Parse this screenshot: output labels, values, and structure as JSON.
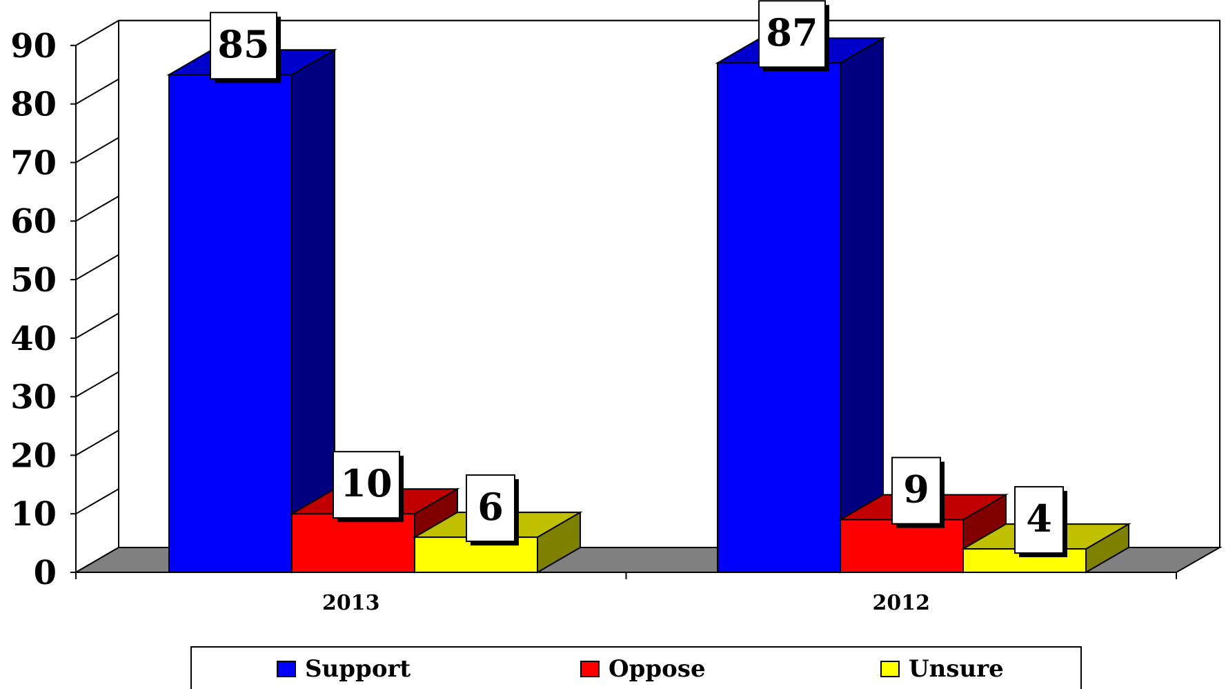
{
  "chart_data": {
    "type": "bar",
    "categories": [
      "2013",
      "2012"
    ],
    "series": [
      {
        "name": "Support",
        "values": [
          85,
          87
        ],
        "color": "#0000ff",
        "side_color": "#000080",
        "top_color": "#0000cc"
      },
      {
        "name": "Oppose",
        "values": [
          10,
          9
        ],
        "color": "#ff0000",
        "side_color": "#800000",
        "top_color": "#c00000"
      },
      {
        "name": "Unsure",
        "values": [
          6,
          4
        ],
        "color": "#ffff00",
        "side_color": "#808000",
        "top_color": "#c0c000"
      }
    ],
    "ylim": [
      0,
      90
    ],
    "yticks": [
      "0",
      "10",
      "20",
      "30",
      "40",
      "50",
      "60",
      "70",
      "80",
      "90"
    ],
    "grid": true,
    "legend_position": "bottom",
    "floor_color": "#808080",
    "title": "",
    "xlabel": "",
    "ylabel": ""
  }
}
